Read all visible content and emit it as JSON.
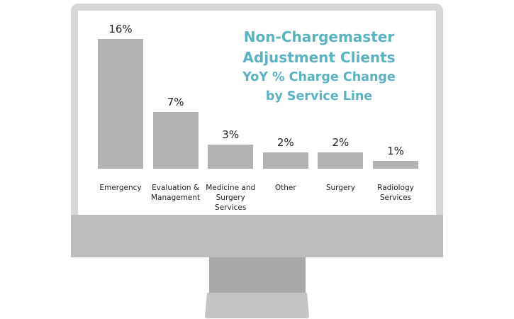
{
  "chart_data": {
    "type": "bar",
    "title": "Non-Chargemaster Adjustment Clients",
    "subtitle": "YoY % Charge Change by Service Line",
    "categories": [
      "Emergency",
      "Evaluation & Management",
      "Medicine and Surgery Services",
      "Other",
      "Surgery",
      "Radiology Services"
    ],
    "values": [
      16,
      7,
      3,
      2,
      2,
      1
    ],
    "value_labels": [
      "16%",
      "7%",
      "3%",
      "2%",
      "2%",
      "1%"
    ],
    "color": "#b3b3b3"
  }
}
